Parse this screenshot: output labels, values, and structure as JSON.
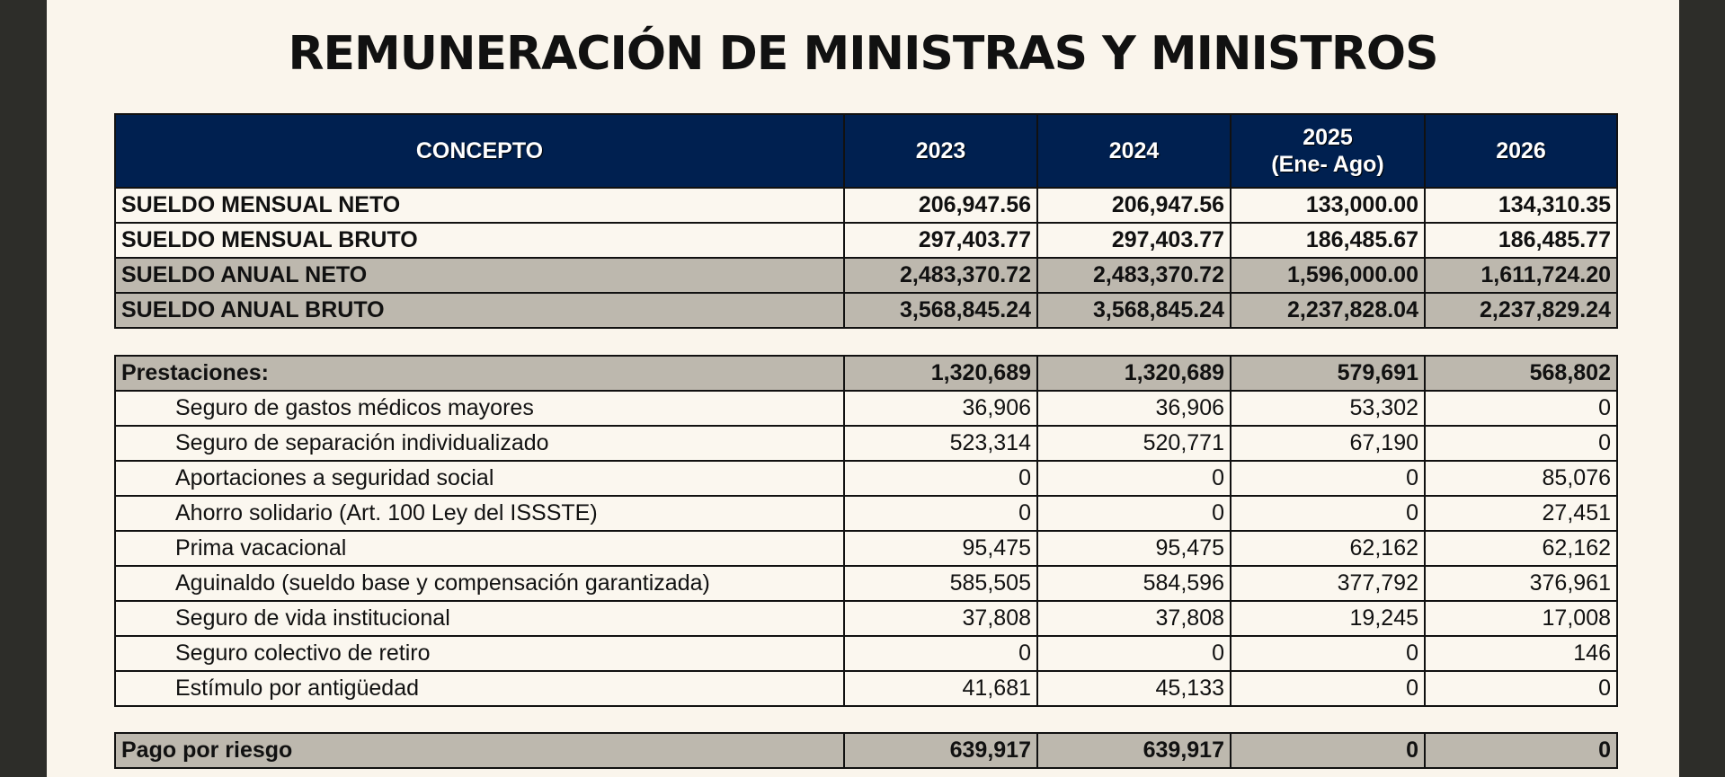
{
  "title": "REMUNERACIÓN DE MINISTRAS Y MINISTROS",
  "header": {
    "concept": "CONCEPTO",
    "years": [
      "2023",
      "2024",
      "2025",
      "2026"
    ],
    "year_notes": [
      "",
      "",
      "(Ene- Ago)",
      ""
    ]
  },
  "colors": {
    "header_bg": "#002050",
    "gray_row": "#bdb8ae",
    "light_row": "#fbf7ef"
  },
  "salary_rows": [
    {
      "label": "SUELDO MENSUAL NETO",
      "values": [
        "206,947.56",
        "206,947.56",
        "133,000.00",
        "134,310.35"
      ],
      "style": "light"
    },
    {
      "label": "SUELDO MENSUAL BRUTO",
      "values": [
        "297,403.77",
        "297,403.77",
        "186,485.67",
        "186,485.77"
      ],
      "style": "light"
    },
    {
      "label": "SUELDO ANUAL NETO",
      "values": [
        "2,483,370.72",
        "2,483,370.72",
        "1,596,000.00",
        "1,611,724.20"
      ],
      "style": "gray"
    },
    {
      "label": "SUELDO ANUAL BRUTO",
      "values": [
        "3,568,845.24",
        "3,568,845.24",
        "2,237,828.04",
        "2,237,829.24"
      ],
      "style": "gray"
    }
  ],
  "benefits": {
    "label": "Prestaciones:",
    "totals": [
      "1,320,689",
      "1,320,689",
      "579,691",
      "568,802"
    ],
    "items": [
      {
        "label": "Seguro de gastos médicos mayores",
        "values": [
          "36,906",
          "36,906",
          "53,302",
          "0"
        ]
      },
      {
        "label": "Seguro de separación individualizado",
        "values": [
          "523,314",
          "520,771",
          "67,190",
          "0"
        ]
      },
      {
        "label": "Aportaciones a seguridad social",
        "values": [
          "0",
          "0",
          "0",
          "85,076"
        ]
      },
      {
        "label": "Ahorro solidario (Art. 100 Ley del ISSSTE)",
        "values": [
          "0",
          "0",
          "0",
          "27,451"
        ]
      },
      {
        "label": "Prima vacacional",
        "values": [
          "95,475",
          "95,475",
          "62,162",
          "62,162"
        ]
      },
      {
        "label": "Aguinaldo (sueldo base y compensación garantizada)",
        "values": [
          "585,505",
          "584,596",
          "377,792",
          "376,961"
        ]
      },
      {
        "label": "Seguro de vida institucional",
        "values": [
          "37,808",
          "37,808",
          "19,245",
          "17,008"
        ]
      },
      {
        "label": "Seguro colectivo de retiro",
        "values": [
          "0",
          "0",
          "0",
          "146"
        ]
      },
      {
        "label": "Estímulo por antigüedad",
        "values": [
          "41,681",
          "45,133",
          "0",
          "0"
        ]
      }
    ]
  },
  "risk_pay": {
    "label": "Pago por riesgo",
    "values": [
      "639,917",
      "639,917",
      "0",
      "0"
    ]
  }
}
